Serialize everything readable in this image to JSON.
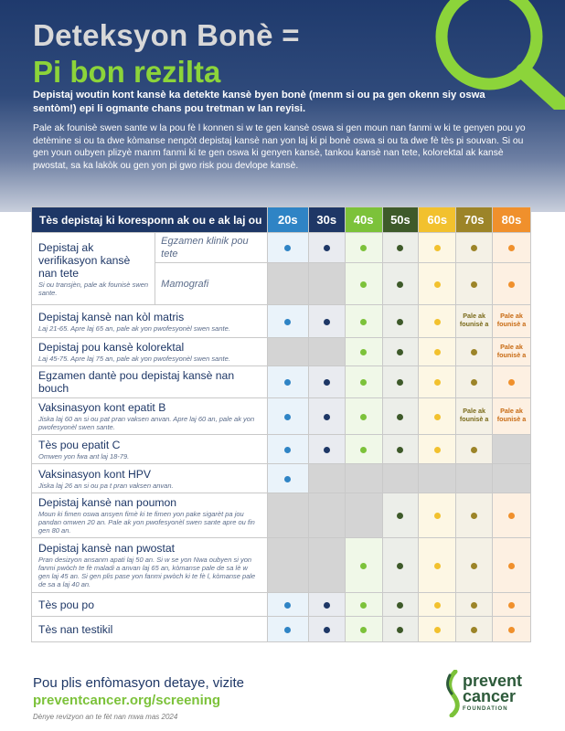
{
  "header": {
    "title_line1": "Deteksyon Bonè =",
    "title_line2": "Pi bon rezilta",
    "lead": "Depistaj woutin kont kansè ka detekte kansè byen bonè (menm si ou pa gen okenn siy oswa sentòm!) epi li ogmante chans pou tretman w lan reyisi.",
    "body": "Pale ak founisè swen sante w la pou fè l konnen si w te gen kansè oswa si gen moun nan fanmi w ki te genyen pou yo detèmine si ou ta dwe kòmanse nenpòt depistaj kansè nan yon laj ki pi bonè oswa si ou ta dwe fè tès pi souvan. Si ou gen youn oubyen plizyè manm fanmi ki te gen oswa ki genyen kansè, tankou kansè nan tete, kolorektal ak kansè pwostat, sa ka lakòk ou gen yon pi gwo risk pou devlope kansè."
  },
  "table": {
    "header_label": "Tès depistaj ki koresponn ak ou e ak laj ou",
    "age_columns": [
      "20s",
      "30s",
      "40s",
      "50s",
      "60s",
      "70s",
      "80s"
    ],
    "colors": {
      "20s": "#2f84c5",
      "30s": "#1e3766",
      "40s": "#7cc23a",
      "50s": "#3e5a2a",
      "60s": "#f2c12e",
      "70s": "#9c8428",
      "80s": "#f0902c",
      "na": "#d4d4d4"
    },
    "talk_note": "Pale ak founisè a",
    "rows": [
      {
        "name": "Depistaj ak verifikasyon kansè nan tete",
        "note": "Si ou transjèn, pale ak founisè swen sante.",
        "sub": [
          {
            "label": "Egzamen klinik pou tete",
            "cells": [
              "dot",
              "dot",
              "dot",
              "dot",
              "dot",
              "dot",
              "dot"
            ]
          },
          {
            "label": "Mamografi",
            "cells": [
              "na",
              "na",
              "dot",
              "dot",
              "dot",
              "dot",
              "dot"
            ]
          }
        ]
      },
      {
        "name": "Depistaj kansè nan kòl matris",
        "note": "Laj 21-65. Apre laj 65 an, pale ak yon pwofesyonèl swen sante.",
        "cells": [
          "dot",
          "dot",
          "dot",
          "dot",
          "dot",
          "talk",
          "talk"
        ]
      },
      {
        "name": "Depistaj pou kansè kolorektal",
        "note": "Laj 45-75. Apre laj 75 an, pale ak yon pwofesyonèl swen sante.",
        "cells": [
          "na",
          "na",
          "dot",
          "dot",
          "dot",
          "dot",
          "talk"
        ]
      },
      {
        "name": "Egzamen dantè pou depistaj kansè nan bouch",
        "note": "",
        "cells": [
          "dot",
          "dot",
          "dot",
          "dot",
          "dot",
          "dot",
          "dot"
        ]
      },
      {
        "name": "Vaksinasyon kont epatit B",
        "note": "Jiska laj 60 an si ou pat pran vaksen anvan. Apre laj 60 an, pale ak yon pwofesyonèl swen sante.",
        "cells": [
          "dot",
          "dot",
          "dot",
          "dot",
          "dot",
          "talk",
          "talk"
        ]
      },
      {
        "name": "Tès pou epatit C",
        "note": "Omwen yon fwa ant laj 18-79.",
        "cells": [
          "dot",
          "dot",
          "dot",
          "dot",
          "dot",
          "dot",
          "na"
        ]
      },
      {
        "name": "Vaksinasyon kont HPV",
        "note": "Jiska laj 26 an si ou pa t pran vaksen anvan.",
        "cells": [
          "dot",
          "na",
          "na",
          "na",
          "na",
          "na",
          "na"
        ]
      },
      {
        "name": "Depistaj kansè nan poumon",
        "note": "Moun ki fimen oswa ansyen fimè ki te fimen yon pake sigarèt pa jou pandan omwen 20 an. Pale ak yon pwofesyonèl swen sante apre ou fin gen 80 an.",
        "cells": [
          "na",
          "na",
          "na",
          "dot",
          "dot",
          "dot",
          "dot"
        ]
      },
      {
        "name": "Depistaj kansè nan pwostat",
        "note": "Pran desizyon ansanm apati laj 50 an. Si w se yon Nwa oubyen si yon fanmi pwòch te fè maladi a anvan laj 65 an, kòmanse pale de sa lè w gen laj 45 an. Si gen plis pase yon fanmi pwòch ki te fè l, kòmanse pale de sa a laj 40 an.",
        "cells": [
          "na",
          "na",
          "dot",
          "dot",
          "dot",
          "dot",
          "dot"
        ]
      },
      {
        "name": "Tès pou po",
        "note": "",
        "cells": [
          "dot",
          "dot",
          "dot",
          "dot",
          "dot",
          "dot",
          "dot"
        ]
      },
      {
        "name": "Tès nan testikil",
        "note": "",
        "cells": [
          "dot",
          "dot",
          "dot",
          "dot",
          "dot",
          "dot",
          "dot"
        ]
      }
    ]
  },
  "footer": {
    "line": "Pou plis enfòmasyon detaye, vizite",
    "url": "preventcancer.org/screening",
    "date": "Dènye revizyon an te fèt nan mwa mas 2024"
  },
  "logo": {
    "line1": "prevent",
    "line2": "cancer",
    "line3": "FOUNDATION"
  }
}
